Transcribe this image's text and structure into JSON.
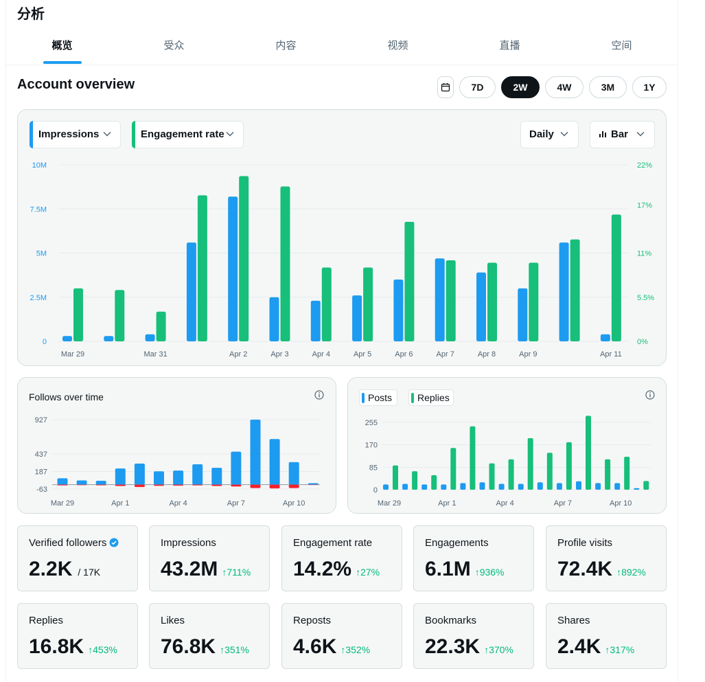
{
  "header": {
    "title": "分析"
  },
  "tabs": [
    {
      "label": "概览",
      "active": true
    },
    {
      "label": "受众"
    },
    {
      "label": "内容"
    },
    {
      "label": "视频"
    },
    {
      "label": "直播"
    },
    {
      "label": "空间"
    }
  ],
  "overview": {
    "title": "Account overview",
    "ranges": [
      "7D",
      "2W",
      "4W",
      "3M",
      "1Y"
    ],
    "selected_range": "2W"
  },
  "main_chart": {
    "metric_left": "Impressions",
    "metric_right": "Engagement rate",
    "granularity": "Daily",
    "chart_type_label": "Bar"
  },
  "colors": {
    "blue": "#1d9bf0",
    "green": "#17bf7a",
    "red": "#f4212e",
    "accent_text": "#00ba7c"
  },
  "chart_data": [
    {
      "type": "bar",
      "categories": [
        "Mar 29",
        "Mar 30",
        "Mar 31",
        "Apr 1",
        "Apr 2",
        "Apr 3",
        "Apr 4",
        "Apr 5",
        "Apr 6",
        "Apr 7",
        "Apr 8",
        "Apr 9",
        "Apr 10",
        "Apr 11"
      ],
      "x_tick_labels": [
        "Mar 29",
        "",
        "Mar 31",
        "",
        "Apr 2",
        "Apr 3",
        "Apr 4",
        "Apr 5",
        "Apr 6",
        "Apr 7",
        "Apr 8",
        "Apr 9",
        "",
        "Apr 11"
      ],
      "series": [
        {
          "name": "Impressions",
          "axis": "left",
          "color": "#1d9bf0",
          "values": [
            0.3,
            0.3,
            0.4,
            5.6,
            8.2,
            2.5,
            2.3,
            2.6,
            3.5,
            4.7,
            3.9,
            3.0,
            5.6,
            0.4
          ]
        },
        {
          "name": "Engagement rate",
          "axis": "right",
          "color": "#17bf7a",
          "values": [
            6.6,
            6.4,
            3.7,
            18.2,
            20.6,
            19.3,
            9.2,
            9.2,
            14.9,
            10.1,
            9.8,
            9.8,
            12.7,
            15.8
          ]
        }
      ],
      "y_left": {
        "ticks": [
          0,
          2.5,
          5,
          7.5,
          10
        ],
        "tick_labels": [
          "0",
          "2.5M",
          "5M",
          "7.5M",
          "10M"
        ],
        "ylim": [
          0,
          10
        ]
      },
      "y_right": {
        "ticks": [
          0,
          5.5,
          11,
          17,
          22
        ],
        "tick_labels": [
          "0%",
          "5.5%",
          "11%",
          "17%",
          "22%"
        ],
        "ylim": [
          0,
          22
        ]
      },
      "grid": true
    },
    {
      "type": "bar",
      "title": "Follows over time",
      "categories": [
        "Mar 29",
        "Mar 30",
        "Mar 31",
        "Apr 1",
        "Apr 2",
        "Apr 3",
        "Apr 4",
        "Apr 5",
        "Apr 6",
        "Apr 7",
        "Apr 8",
        "Apr 9",
        "Apr 10",
        "Apr 11"
      ],
      "x_tick_labels": [
        "Mar 29",
        "",
        "",
        "Apr 1",
        "",
        "",
        "Apr 4",
        "",
        "",
        "Apr 7",
        "",
        "",
        "Apr 10",
        ""
      ],
      "series": [
        {
          "name": "Follows",
          "color": "#1d9bf0",
          "values": [
            90,
            60,
            55,
            230,
            300,
            190,
            200,
            290,
            240,
            470,
            927,
            650,
            320,
            20
          ]
        },
        {
          "name": "Unfollows",
          "color": "#f4212e",
          "values": [
            -12,
            -8,
            -10,
            -20,
            -35,
            -18,
            -15,
            -12,
            -20,
            -28,
            -50,
            -55,
            -50,
            -5
          ]
        }
      ],
      "y": {
        "tick_labels": [
          "927",
          "437",
          "187",
          "-63"
        ],
        "ticks": [
          927,
          437,
          187,
          -63
        ],
        "ylim": [
          -63,
          927
        ]
      },
      "grid": true
    },
    {
      "type": "bar",
      "categories": [
        "Mar 29",
        "Mar 30",
        "Mar 31",
        "Apr 1",
        "Apr 2",
        "Apr 3",
        "Apr 4",
        "Apr 5",
        "Apr 6",
        "Apr 7",
        "Apr 8",
        "Apr 9",
        "Apr 10",
        "Apr 11"
      ],
      "x_tick_labels": [
        "Mar 29",
        "",
        "",
        "Apr 1",
        "",
        "",
        "Apr 4",
        "",
        "",
        "Apr 7",
        "",
        "",
        "Apr 10",
        ""
      ],
      "legend": [
        "Posts",
        "Replies"
      ],
      "series": [
        {
          "name": "Posts",
          "color": "#1d9bf0",
          "values": [
            20,
            22,
            20,
            20,
            25,
            28,
            22,
            22,
            28,
            25,
            32,
            25,
            25,
            6
          ]
        },
        {
          "name": "Replies",
          "color": "#17bf7a",
          "values": [
            92,
            70,
            55,
            158,
            240,
            100,
            115,
            195,
            140,
            180,
            280,
            115,
            125,
            33
          ]
        }
      ],
      "y": {
        "tick_labels": [
          "255",
          "170",
          "85",
          "0"
        ],
        "ticks": [
          255,
          170,
          85,
          0
        ],
        "ylim": [
          0,
          255
        ]
      },
      "grid": true
    }
  ],
  "panels": {
    "follows_title": "Follows over time",
    "posts_legend": "Posts",
    "replies_legend": "Replies"
  },
  "stats": [
    {
      "label": "Verified followers",
      "value": "2.2K",
      "sub": "/ 17K",
      "verified": true
    },
    {
      "label": "Impressions",
      "value": "43.2M",
      "delta": "711%"
    },
    {
      "label": "Engagement rate",
      "value": "14.2%",
      "delta": "27%"
    },
    {
      "label": "Engagements",
      "value": "6.1M",
      "delta": "936%"
    },
    {
      "label": "Profile visits",
      "value": "72.4K",
      "delta": "892%"
    },
    {
      "label": "Replies",
      "value": "16.8K",
      "delta": "453%"
    },
    {
      "label": "Likes",
      "value": "76.8K",
      "delta": "351%"
    },
    {
      "label": "Reposts",
      "value": "4.6K",
      "delta": "352%"
    },
    {
      "label": "Bookmarks",
      "value": "22.3K",
      "delta": "370%"
    },
    {
      "label": "Shares",
      "value": "2.4K",
      "delta": "317%"
    }
  ]
}
